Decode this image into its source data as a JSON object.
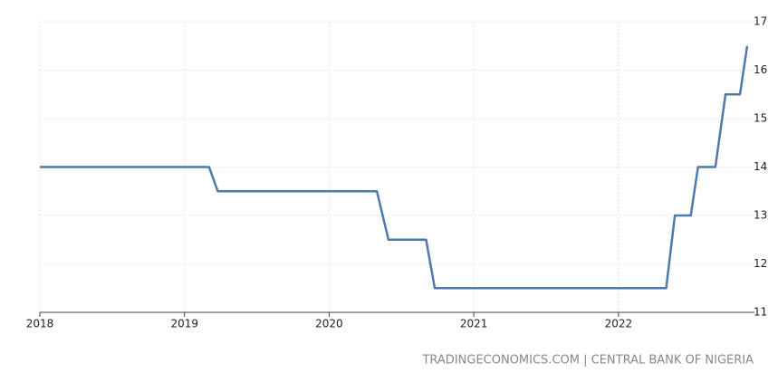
{
  "chart_data": {
    "type": "line",
    "x": [
      2018.0,
      2019.17,
      2019.23,
      2020.33,
      2020.41,
      2020.67,
      2020.73,
      2022.33,
      2022.39,
      2022.5,
      2022.55,
      2022.67,
      2022.74,
      2022.84,
      2022.89
    ],
    "series": [
      {
        "color": "#4d79ad",
        "values": [
          14,
          14,
          13.5,
          13.5,
          12.5,
          12.5,
          11.5,
          11.5,
          13,
          13,
          14,
          14,
          15.5,
          15.5,
          16.5
        ]
      }
    ],
    "xlim": [
      2018,
      2022.89
    ],
    "xticks": [
      2018,
      2019,
      2020,
      2021,
      2022
    ],
    "ylim": [
      11,
      17
    ],
    "yticks": [
      11,
      12,
      13,
      14,
      15,
      16,
      17
    ],
    "grid": true,
    "source": "TRADINGECONOMICS.COM | CENTRAL BANK OF NIGERIA"
  }
}
